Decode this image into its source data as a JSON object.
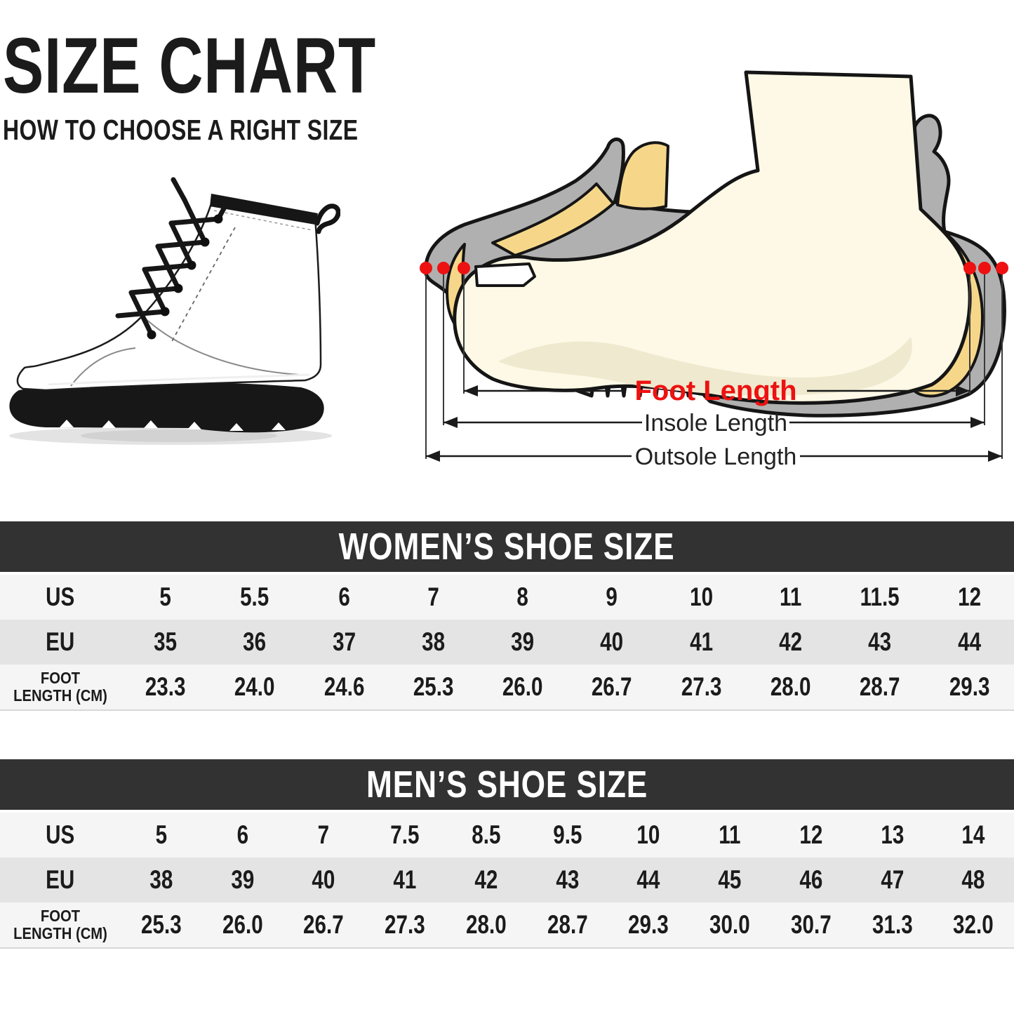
{
  "page": {
    "title": "SIZE CHART",
    "subtitle": "HOW TO CHOOSE A RIGHT SIZE"
  },
  "diagram": {
    "foot_length_label": "Foot Length",
    "insole_length_label": "Insole Length",
    "outsole_length_label": "Outsole Length",
    "colors": {
      "shoe_gray": "#b0b0b0",
      "lining_yellow": "#f6d78a",
      "foot_cream": "#fdf9e6",
      "foot_shadow": "#efe9cf",
      "marker_red": "#ee1111",
      "outline_black": "#151515",
      "label_red": "#ee1111",
      "label_dark": "#222222"
    }
  },
  "tables": {
    "colors": {
      "header_bg": "#323232",
      "header_text": "#ffffff",
      "row_light": "#f5f5f5",
      "row_dark": "#e4e4e4",
      "text": "#1b1b1b"
    },
    "women": {
      "header": "WOMEN’S SHOE SIZE",
      "rows": [
        {
          "label": "US",
          "values": [
            "5",
            "5.5",
            "6",
            "7",
            "8",
            "9",
            "10",
            "11",
            "11.5",
            "12"
          ]
        },
        {
          "label": "EU",
          "values": [
            "35",
            "36",
            "37",
            "38",
            "39",
            "40",
            "41",
            "42",
            "43",
            "44"
          ]
        },
        {
          "label": "FOOT",
          "label2": "LENGTH (CM)",
          "values": [
            "23.3",
            "24.0",
            "24.6",
            "25.3",
            "26.0",
            "26.7",
            "27.3",
            "28.0",
            "28.7",
            "29.3"
          ]
        }
      ]
    },
    "men": {
      "header": "MEN’S SHOE SIZE",
      "rows": [
        {
          "label": "US",
          "values": [
            "5",
            "6",
            "7",
            "7.5",
            "8.5",
            "9.5",
            "10",
            "11",
            "12",
            "13",
            "14"
          ]
        },
        {
          "label": "EU",
          "values": [
            "38",
            "39",
            "40",
            "41",
            "42",
            "43",
            "44",
            "45",
            "46",
            "47",
            "48"
          ]
        },
        {
          "label": "FOOT",
          "label2": "LENGTH (CM)",
          "values": [
            "25.3",
            "26.0",
            "26.7",
            "27.3",
            "28.0",
            "28.7",
            "29.3",
            "30.0",
            "30.7",
            "31.3",
            "32.0"
          ]
        }
      ]
    }
  }
}
